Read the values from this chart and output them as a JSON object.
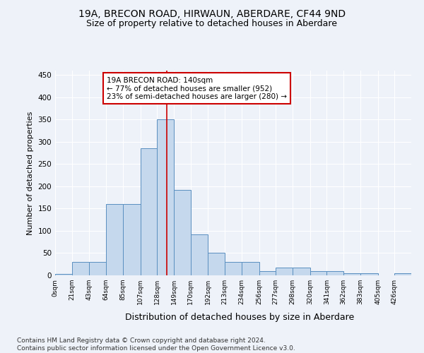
{
  "title": "19A, BRECON ROAD, HIRWAUN, ABERDARE, CF44 9ND",
  "subtitle": "Size of property relative to detached houses in Aberdare",
  "xlabel": "Distribution of detached houses by size in Aberdare",
  "ylabel": "Number of detached properties",
  "bin_edges": [
    0,
    21,
    43,
    64,
    85,
    107,
    128,
    149,
    170,
    192,
    213,
    234,
    256,
    277,
    298,
    320,
    341,
    362,
    383,
    405,
    426,
    447
  ],
  "bin_labels": [
    "0sqm",
    "21sqm",
    "43sqm",
    "64sqm",
    "85sqm",
    "107sqm",
    "128sqm",
    "149sqm",
    "170sqm",
    "192sqm",
    "213sqm",
    "234sqm",
    "256sqm",
    "277sqm",
    "298sqm",
    "320sqm",
    "341sqm",
    "362sqm",
    "383sqm",
    "405sqm",
    "426sqm"
  ],
  "bar_heights": [
    3,
    30,
    30,
    160,
    160,
    285,
    350,
    192,
    92,
    50,
    30,
    30,
    10,
    17,
    17,
    10,
    10,
    5,
    5,
    0,
    5
  ],
  "bar_color": "#c5d8ed",
  "bar_edge_color": "#5a8fc0",
  "ylim": [
    0,
    460
  ],
  "yticks": [
    0,
    50,
    100,
    150,
    200,
    250,
    300,
    350,
    400,
    450
  ],
  "property_size": 140,
  "vline_color": "#cc0000",
  "annotation_text": "19A BRECON ROAD: 140sqm\n← 77% of detached houses are smaller (952)\n23% of semi-detached houses are larger (280) →",
  "annotation_box_color": "#ffffff",
  "annotation_box_edge": "#cc0000",
  "background_color": "#eef2f9",
  "footer_text": "Contains HM Land Registry data © Crown copyright and database right 2024.\nContains public sector information licensed under the Open Government Licence v3.0.",
  "grid_color": "#ffffff",
  "title_fontsize": 10,
  "subtitle_fontsize": 9,
  "ylabel_fontsize": 8,
  "xlabel_fontsize": 9,
  "footer_fontsize": 6.5
}
